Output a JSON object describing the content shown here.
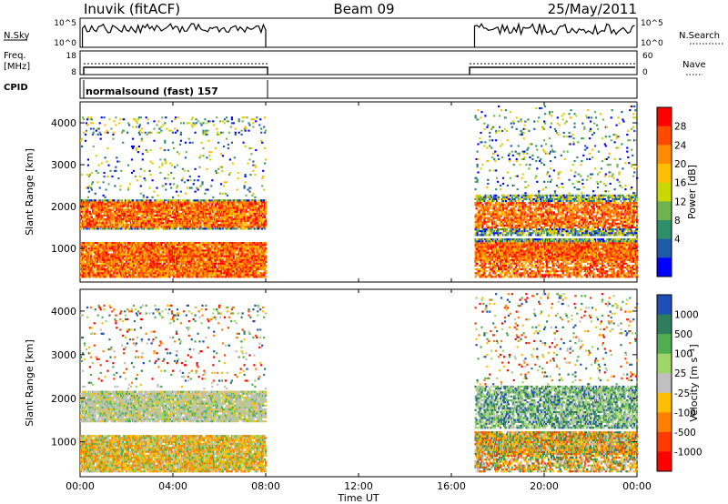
{
  "header": {
    "station": "Inuvik (fitACF)",
    "beam": "Beam 09",
    "date": "25/May/2011"
  },
  "panels": {
    "nsky": {
      "left_label": "N.Sky",
      "right_label": "N.Search",
      "left_ticks": [
        "10^5",
        "10^0"
      ],
      "right_ticks": [
        "10^5",
        "10^0"
      ]
    },
    "freq": {
      "left_label_line1": "Freq.",
      "left_label_line2": "[MHz]",
      "right_label": "Nave",
      "left_ticks": [
        "18",
        "8"
      ],
      "right_ticks": [
        "60",
        "0"
      ]
    },
    "cpid": {
      "label": "CPID",
      "text": "normalsound (fast) 157"
    }
  },
  "chart_data": [
    {
      "type": "heatmap",
      "name": "power",
      "ylabel": "Slant Range [km]",
      "yticks": [
        "1000",
        "2000",
        "3000",
        "4000"
      ],
      "ylim": [
        200,
        4500
      ],
      "xlim": [
        0,
        24
      ],
      "colorbar": {
        "label": "Power [dB]",
        "ticks": [
          "28",
          "24",
          "20",
          "16",
          "12",
          "8",
          "4"
        ],
        "colors": [
          "#ff0000",
          "#ff4a00",
          "#ff8c00",
          "#ffbf00",
          "#c8d800",
          "#6fb34f",
          "#2f8f6a",
          "#1f5aa8",
          "#0000ff"
        ]
      },
      "data_windows_hours": [
        [
          0,
          8
        ],
        [
          17,
          24
        ]
      ],
      "scatter_layers": [
        {
          "x0": 0.0,
          "x1": 8.0,
          "y0": 300,
          "y1": 700,
          "kind": "strong"
        },
        {
          "x0": 0.0,
          "x1": 8.0,
          "y0": 700,
          "y1": 1100,
          "kind": "mixed"
        },
        {
          "x0": 0.5,
          "x1": 8.0,
          "y0": 1500,
          "y1": 2100,
          "kind": "strong"
        },
        {
          "x0": 17.0,
          "x1": 24.0,
          "y0": 600,
          "y1": 1200,
          "kind": "strong"
        },
        {
          "x0": 17.0,
          "x1": 24.0,
          "y0": 1400,
          "y1": 2200,
          "kind": "mixed"
        }
      ]
    },
    {
      "type": "heatmap",
      "name": "velocity",
      "ylabel": "Slant Range [km]",
      "yticks": [
        "1000",
        "2000",
        "3000",
        "4000"
      ],
      "ylim": [
        200,
        4500
      ],
      "xlim": [
        0,
        24
      ],
      "colorbar": {
        "label": "Velocity [m s⁻¹]",
        "ticks": [
          "1000",
          "500",
          "100",
          "25",
          "-25",
          "-100",
          "-500",
          "-1000"
        ],
        "colors": [
          "#1f4fb4",
          "#2e7d5e",
          "#4fae4f",
          "#9fd66a",
          "#c0c0c0",
          "#ffbf00",
          "#ff8000",
          "#ff3b00",
          "#ff0000"
        ]
      },
      "data_windows_hours": [
        [
          0,
          8
        ],
        [
          17,
          24
        ]
      ]
    }
  ],
  "xaxis": {
    "label": "Time UT",
    "ticks": [
      "00:00",
      "04:00",
      "08:00",
      "12:00",
      "16:00",
      "20:00",
      "00:00"
    ]
  }
}
